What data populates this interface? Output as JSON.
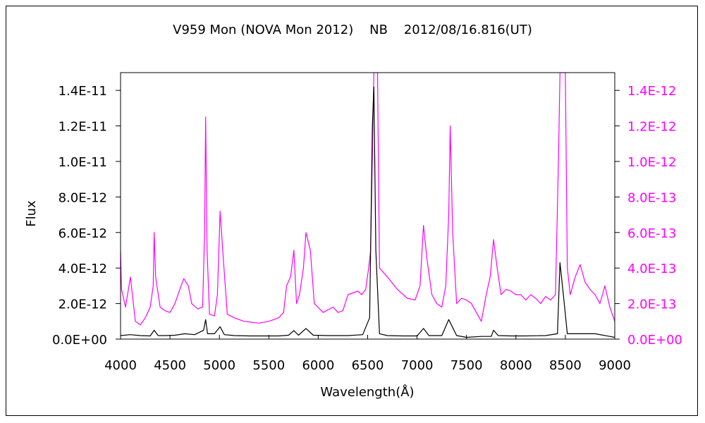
{
  "chart_data": {
    "type": "line",
    "title": "V959 Mon (NOVA Mon 2012)    NB    2012/08/16.816(UT)",
    "xlabel": "Wavelength(Å)",
    "ylabel": "Flux",
    "xlim": [
      4000,
      9000
    ],
    "x_ticks": [
      "4000",
      "4500",
      "5000",
      "5500",
      "6000",
      "6500",
      "7000",
      "7500",
      "8000",
      "8500",
      "9000"
    ],
    "y_left": {
      "lim": [
        0,
        1.5e-11
      ],
      "ticks": [
        "0.0E+00",
        "2.0E-12",
        "4.0E-12",
        "6.0E-12",
        "8.0E-12",
        "1.0E-11",
        "1.2E-11",
        "1.4E-11"
      ]
    },
    "y_right": {
      "lim": [
        0,
        1.5e-12
      ],
      "ticks": [
        "0.0E+00",
        "2.0E-13",
        "4.0E-13",
        "6.0E-13",
        "8.0E-13",
        "1.0E-12",
        "1.2E-12",
        "1.4E-12"
      ],
      "color": "#ff00ff"
    },
    "grid": false,
    "series": [
      {
        "axis": "left",
        "color": "#000000",
        "x": [
          4000,
          4100,
          4200,
          4300,
          4340,
          4380,
          4450,
          4550,
          4650,
          4750,
          4840,
          4861,
          4880,
          4950,
          5007,
          5050,
          5150,
          5300,
          5450,
          5600,
          5700,
          5754,
          5800,
          5876,
          5950,
          6100,
          6300,
          6450,
          6520,
          6548,
          6563,
          6583,
          6620,
          6700,
          6850,
          7000,
          7065,
          7120,
          7250,
          7320,
          7400,
          7500,
          7650,
          7750,
          7774,
          7820,
          7950,
          8100,
          8300,
          8420,
          8446,
          8480,
          8520,
          8650,
          8800,
          8950,
          9000
        ],
        "values": [
          2e-13,
          2.5e-13,
          2e-13,
          1.8e-13,
          5e-13,
          2e-13,
          2e-13,
          2.2e-13,
          3e-13,
          2.5e-13,
          5e-13,
          1.1e-12,
          3e-13,
          3e-13,
          7e-13,
          2.5e-13,
          2e-13,
          1.8e-13,
          1.8e-13,
          1.8e-13,
          2.2e-13,
          4.8e-13,
          2.2e-13,
          6e-13,
          2.2e-13,
          2e-13,
          2e-13,
          2.5e-13,
          1.2e-12,
          1.2e-11,
          1.42e-11,
          5e-12,
          3e-13,
          2e-13,
          1.8e-13,
          1.8e-13,
          6e-13,
          2e-13,
          2e-13,
          1.1e-12,
          2e-13,
          1e-13,
          1.5e-13,
          1.5e-13,
          5e-13,
          2e-13,
          1.8e-13,
          1.8e-13,
          2e-13,
          3e-13,
          4.3e-12,
          2.5e-12,
          3e-13,
          3e-13,
          3e-13,
          1.5e-13,
          1e-13
        ]
      },
      {
        "axis": "right",
        "color": "#ff00ff",
        "x": [
          4000,
          4010,
          4050,
          4100,
          4150,
          4200,
          4250,
          4300,
          4330,
          4340,
          4355,
          4400,
          4450,
          4500,
          4550,
          4600,
          4640,
          4686,
          4720,
          4780,
          4830,
          4850,
          4861,
          4875,
          4900,
          4950,
          4980,
          5007,
          5040,
          5080,
          5150,
          5250,
          5400,
          5500,
          5600,
          5650,
          5680,
          5720,
          5754,
          5780,
          5810,
          5850,
          5876,
          5920,
          5960,
          6050,
          6150,
          6200,
          6250,
          6300,
          6350,
          6400,
          6440,
          6480,
          6510,
          6530,
          6550,
          6563,
          6600,
          6620,
          6700,
          6800,
          6900,
          6980,
          7030,
          7065,
          7100,
          7150,
          7200,
          7250,
          7290,
          7320,
          7335,
          7360,
          7400,
          7450,
          7500,
          7550,
          7600,
          7650,
          7700,
          7740,
          7774,
          7810,
          7850,
          7900,
          7950,
          8000,
          8050,
          8100,
          8150,
          8200,
          8250,
          8300,
          8350,
          8400,
          8430,
          8446,
          8500,
          8520,
          8550,
          8600,
          8650,
          8700,
          8750,
          8800,
          8850,
          8900,
          8950,
          9000
        ],
        "values": [
          5e-13,
          2.8e-13,
          1.8e-13,
          3.5e-13,
          1e-13,
          8e-14,
          1.2e-13,
          1.8e-13,
          3e-13,
          6e-13,
          3.5e-13,
          1.8e-13,
          1.6e-13,
          1.5e-13,
          2e-13,
          2.8e-13,
          3.4e-13,
          3e-13,
          2e-13,
          1.7e-13,
          1.8e-13,
          6e-13,
          1.25e-12,
          5e-13,
          1.4e-13,
          1.3e-13,
          2.5e-13,
          7.2e-13,
          4.5e-13,
          1.4e-13,
          1.2e-13,
          1e-13,
          9e-14,
          1e-13,
          1.2e-13,
          1.5e-13,
          3e-13,
          3.5e-13,
          5e-13,
          2e-13,
          2.5e-13,
          4e-13,
          6e-13,
          5e-13,
          2e-13,
          1.5e-13,
          1.8e-13,
          1.5e-13,
          1.6e-13,
          2.5e-13,
          2.6e-13,
          2.7e-13,
          2.5e-13,
          2.8e-13,
          4e-13,
          5e-13,
          1.1e-12,
          1.5e-12,
          1.5e-12,
          4e-13,
          3.5e-13,
          2.8e-13,
          2.3e-13,
          2.2e-13,
          3e-13,
          6.4e-13,
          4.5e-13,
          2.5e-13,
          2e-13,
          1.8e-13,
          3e-13,
          7e-13,
          1.2e-12,
          6e-13,
          2e-13,
          2.3e-13,
          2.2e-13,
          2e-13,
          1.5e-13,
          1e-13,
          2.5e-13,
          3.5e-13,
          5.6e-13,
          4e-13,
          2.5e-13,
          2.8e-13,
          2.7e-13,
          2.5e-13,
          2.5e-13,
          2.2e-13,
          2.5e-13,
          2.3e-13,
          2e-13,
          2.4e-13,
          2.2e-13,
          2.5e-13,
          1e-12,
          1.5e-12,
          1.5e-12,
          4e-13,
          2.5e-13,
          3.5e-13,
          4.2e-13,
          3.2e-13,
          2.8e-13,
          2.5e-13,
          2e-13,
          3e-13,
          1.8e-13,
          1e-13
        ]
      }
    ]
  }
}
